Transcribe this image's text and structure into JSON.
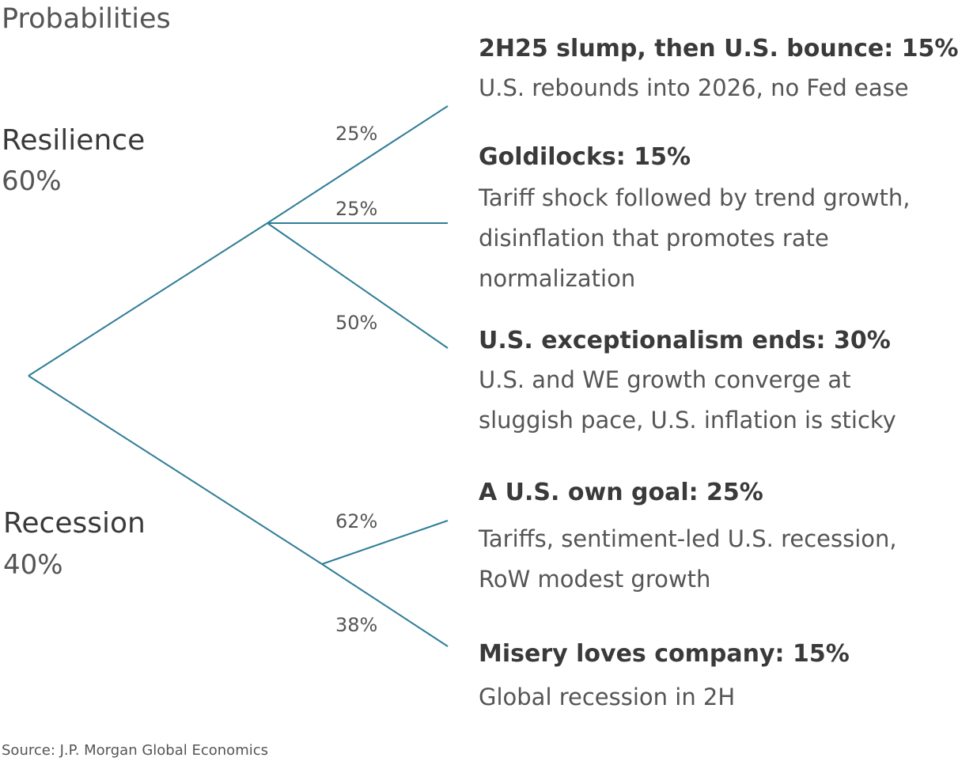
{
  "title": "Probabilities",
  "colors": {
    "tree_line": "#2f7d96",
    "text": "#3a3a3a",
    "muted_text": "#555555"
  },
  "branches": {
    "resilience": {
      "name": "Resilience",
      "prob": "60%"
    },
    "recession": {
      "name": "Recession",
      "prob": "40%"
    }
  },
  "edge_labels": {
    "e1": "25%",
    "e2": "25%",
    "e3": "50%",
    "e4": "62%",
    "e5": "38%"
  },
  "scenarios": [
    {
      "title": "2H25 slump, then U.S. bounce: 15%",
      "desc": [
        "U.S. rebounds into 2026, no Fed ease"
      ]
    },
    {
      "title": "Goldilocks: 15%",
      "desc": [
        "Tariff shock followed by trend growth,",
        "disinflation that promotes rate",
        "normalization"
      ]
    },
    {
      "title": "U.S. exceptionalism ends: 30%",
      "desc": [
        "U.S. and WE growth converge at",
        "sluggish pace, U.S. inflation is sticky"
      ]
    },
    {
      "title": "A U.S. own goal: 25%",
      "desc": [
        "Tariffs, sentiment-led U.S. recession,",
        "RoW modest growth"
      ]
    },
    {
      "title": "Misery loves company: 15%",
      "desc": [
        "Global recession in 2H"
      ]
    }
  ],
  "source": "Source: J.P. Morgan Global Economics"
}
